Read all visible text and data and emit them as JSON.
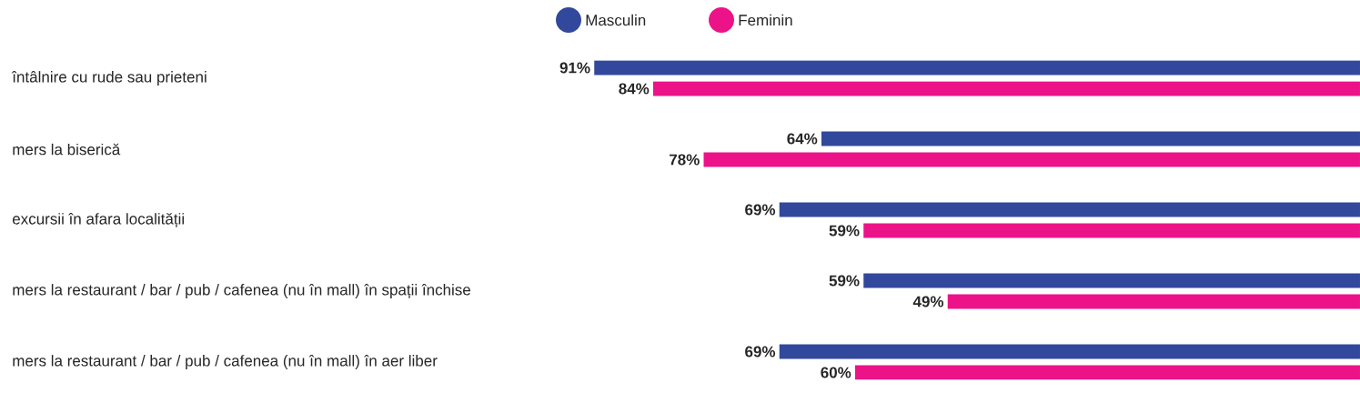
{
  "chart_data": {
    "type": "bar",
    "orientation": "horizontal",
    "categories": [
      "întâlnire cu rude sau prieteni",
      "mers la biserică",
      "excursii în afara localității",
      "mers la restaurant / bar / pub / cafenea (nu în mall) în spații închise",
      "mers la restaurant / bar / pub / cafenea (nu în mall) în aer liber"
    ],
    "series": [
      {
        "name": "Masculin",
        "color": "#32489c",
        "values": [
          91,
          64,
          69,
          59,
          69
        ],
        "value_labels": [
          "91%",
          "64%",
          "69%",
          "59%",
          "69%"
        ]
      },
      {
        "name": "Feminin",
        "color": "#ec1389",
        "values": [
          84,
          78,
          59,
          49,
          60
        ],
        "value_labels": [
          "84%",
          "78%",
          "59%",
          "49%",
          "60%"
        ]
      }
    ],
    "legend": "top",
    "tick_labels": "y"
  }
}
